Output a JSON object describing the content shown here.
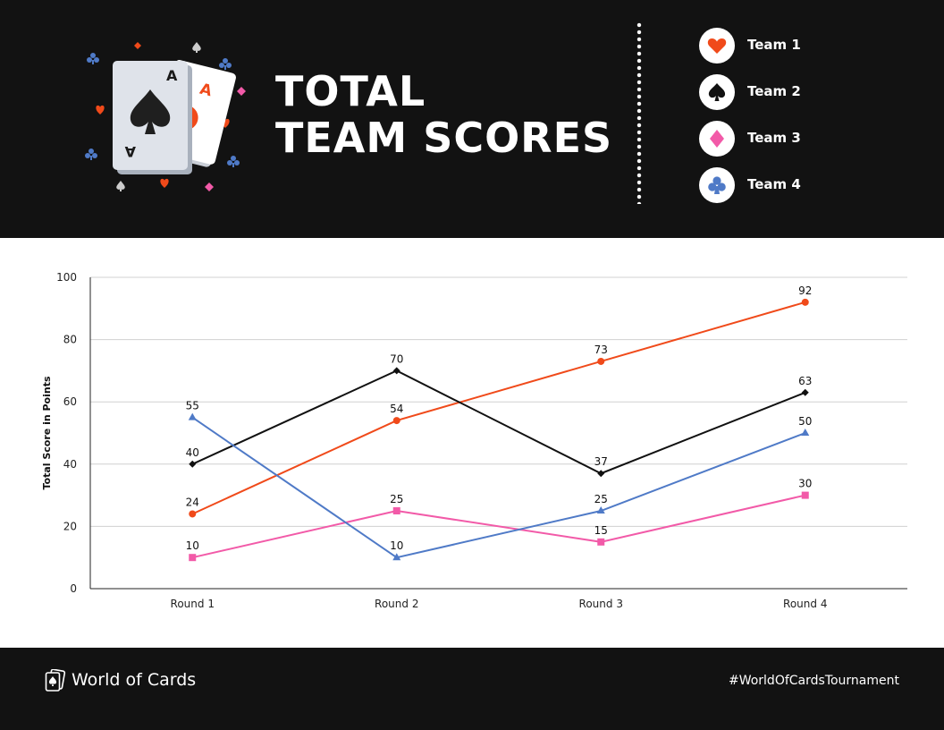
{
  "header": {
    "title_line1": "TOTAL",
    "title_line2": "TEAM SCORES",
    "card_rank": "A"
  },
  "legend": [
    {
      "label": "Team 1",
      "icon": "heart-icon",
      "color": "#f04a1a"
    },
    {
      "label": "Team 2",
      "icon": "spade-icon",
      "color": "#111111"
    },
    {
      "label": "Team 3",
      "icon": "diamond-icon",
      "color": "#f25aa8"
    },
    {
      "label": "Team 4",
      "icon": "club-icon",
      "color": "#4f7ac7"
    }
  ],
  "chart_data": {
    "type": "line",
    "title": "",
    "xlabel": "",
    "ylabel": "Total Score in Points",
    "categories": [
      "Round 1",
      "Round 2",
      "Round 3",
      "Round 4"
    ],
    "ylim": [
      0,
      100
    ],
    "yticks": [
      0,
      20,
      40,
      60,
      80,
      100
    ],
    "grid": true,
    "data_labels": true,
    "series": [
      {
        "name": "Team 1",
        "color": "#f04a1a",
        "marker": "circle",
        "values": [
          24,
          54,
          73,
          92
        ]
      },
      {
        "name": "Team 2",
        "color": "#111111",
        "marker": "diamond",
        "values": [
          40,
          70,
          37,
          63
        ]
      },
      {
        "name": "Team 3",
        "color": "#f25aa8",
        "marker": "square",
        "values": [
          10,
          25,
          15,
          30
        ]
      },
      {
        "name": "Team 4",
        "color": "#4f7ac7",
        "marker": "triangle",
        "values": [
          55,
          10,
          25,
          50
        ]
      }
    ]
  },
  "footer": {
    "brand_name": "World of Cards",
    "hashtag": "#WorldOfCardsTournament"
  }
}
